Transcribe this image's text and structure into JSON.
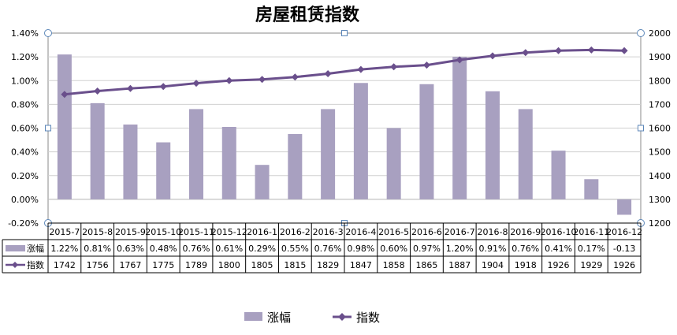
{
  "chart_data": {
    "type": "bar+line",
    "title": "房屋租赁指数",
    "categories": [
      "2015-7",
      "2015-8",
      "2015-9",
      "2015-10",
      "2015-11",
      "2015-12",
      "2016-1",
      "2016-2",
      "2016-3",
      "2016-4",
      "2016-5",
      "2016-6",
      "2016-7",
      "2016-8",
      "2016-9",
      "2016-10",
      "2016-11",
      "2016-12"
    ],
    "series": [
      {
        "name": "涨幅",
        "type": "bar",
        "axis": "left",
        "color": "#a8a0c0",
        "values": [
          1.22,
          0.81,
          0.63,
          0.48,
          0.76,
          0.61,
          0.29,
          0.55,
          0.76,
          0.98,
          0.6,
          0.97,
          1.2,
          0.91,
          0.76,
          0.41,
          0.17,
          -0.13
        ],
        "table_labels": [
          "1.22%",
          "0.81%",
          "0.63%",
          "0.48%",
          "0.76%",
          "0.61%",
          "0.29%",
          "0.55%",
          "0.76%",
          "0.98%",
          "0.60%",
          "0.97%",
          "1.20%",
          "0.91%",
          "0.76%",
          "0.41%",
          "0.17%",
          "-0.13"
        ]
      },
      {
        "name": "指数",
        "type": "line",
        "axis": "right",
        "color": "#6a4f8c",
        "values": [
          1742,
          1756,
          1767,
          1775,
          1789,
          1800,
          1805,
          1815,
          1829,
          1847,
          1858,
          1865,
          1887,
          1904,
          1918,
          1926,
          1929,
          1926
        ],
        "table_labels": [
          "1742",
          "1756",
          "1767",
          "1775",
          "1789",
          "1800",
          "1805",
          "1815",
          "1829",
          "1847",
          "1858",
          "1865",
          "1887",
          "1904",
          "1918",
          "1926",
          "1929",
          "1926"
        ]
      }
    ],
    "y_left": {
      "range": [
        -0.2,
        1.4
      ],
      "ticks": [
        -0.2,
        0.0,
        0.2,
        0.4,
        0.6,
        0.8,
        1.0,
        1.2,
        1.4
      ],
      "tick_labels": [
        "-0.20%",
        "0.00%",
        "0.20%",
        "0.40%",
        "0.60%",
        "0.80%",
        "1.00%",
        "1.20%",
        "1.40%"
      ]
    },
    "y_right": {
      "range": [
        1200,
        2000
      ],
      "ticks": [
        1200,
        1300,
        1400,
        1500,
        1600,
        1700,
        1800,
        1900,
        2000
      ],
      "tick_labels": [
        "1200",
        "1300",
        "1400",
        "1500",
        "1600",
        "1700",
        "1800",
        "1900",
        "2000"
      ]
    },
    "grid": true,
    "data_table": true,
    "legend_position": "bottom"
  }
}
